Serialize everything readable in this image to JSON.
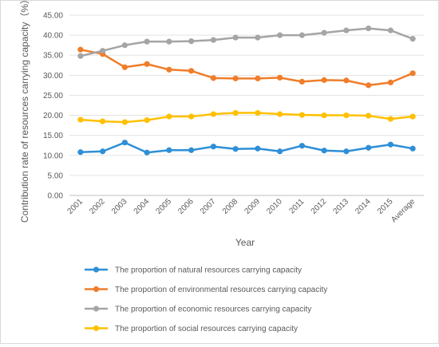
{
  "chart_data": {
    "type": "line",
    "xlabel": "Year",
    "ylabel": "Contribution rate of resources carrying capacity（%）",
    "ylim": [
      0,
      45
    ],
    "ytick_step": 5,
    "ytick_labels": [
      "0.00",
      "5.00",
      "10.00",
      "15.00",
      "20.00",
      "25.00",
      "30.00",
      "35.00",
      "40.00",
      "45.00"
    ],
    "grid": "horizontal",
    "legend_position": "bottom",
    "categories": [
      "2001",
      "2002",
      "2003",
      "2004",
      "2005",
      "2006",
      "2007",
      "2008",
      "2009",
      "2010",
      "2011",
      "2012",
      "2013",
      "2014",
      "2015",
      "Average"
    ],
    "series": [
      {
        "name": "The proportion of natural resources carrying capacity",
        "color": "#2e8fd6",
        "values": [
          10.8,
          11.0,
          13.2,
          10.7,
          11.3,
          11.3,
          12.2,
          11.6,
          11.7,
          11.0,
          12.4,
          11.2,
          11.0,
          11.9,
          12.7,
          11.7
        ]
      },
      {
        "name": "The proportion of environmental resources carrying capacity",
        "color": "#f07d2a",
        "values": [
          36.4,
          35.3,
          32.0,
          32.8,
          31.4,
          31.1,
          29.3,
          29.2,
          29.2,
          29.4,
          28.4,
          28.8,
          28.7,
          27.5,
          28.2,
          30.5
        ]
      },
      {
        "name": "The proportion of economic resources carrying capacity",
        "color": "#a5a5a5",
        "values": [
          34.8,
          36.1,
          37.5,
          38.4,
          38.4,
          38.5,
          38.8,
          39.4,
          39.4,
          40.0,
          40.0,
          40.6,
          41.2,
          41.7,
          41.2,
          39.1
        ]
      },
      {
        "name": "The proportion of social resources carrying capacity",
        "color": "#ffc000",
        "values": [
          18.9,
          18.5,
          18.3,
          18.8,
          19.7,
          19.7,
          20.3,
          20.6,
          20.6,
          20.3,
          20.1,
          20.0,
          20.0,
          19.9,
          19.1,
          19.7
        ]
      }
    ]
  }
}
